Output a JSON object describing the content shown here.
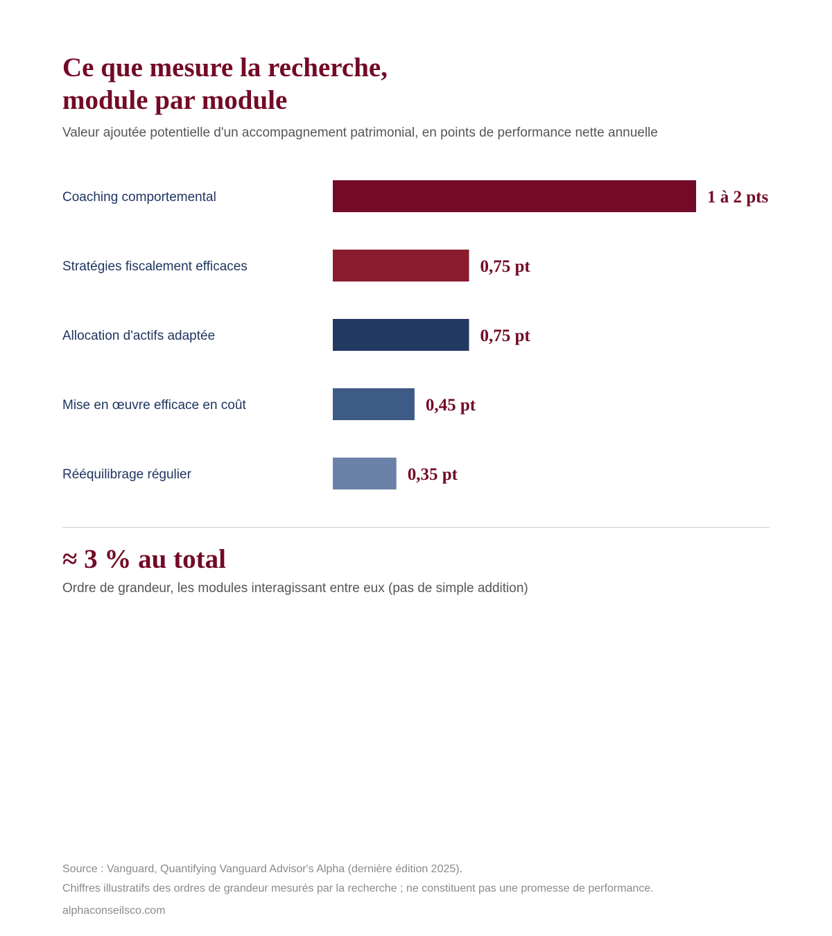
{
  "header": {
    "title_line1": "Ce que mesure la recherche,",
    "title_line2": "module par module",
    "subtitle": "Valeur ajoutée potentielle d'un accompagnement patrimonial, en points de performance nette annuelle"
  },
  "chart_data": {
    "type": "bar",
    "orientation": "horizontal",
    "categories": [
      "Coaching comportemental",
      "Stratégies fiscalement efficaces",
      "Allocation d'actifs adaptée",
      "Mise en œuvre efficace en coût",
      "Rééquilibrage régulier"
    ],
    "values": [
      2,
      0.75,
      0.75,
      0.45,
      0.35
    ],
    "value_labels": [
      "1 à 2 pts",
      "0,75 pt",
      "0,75 pt",
      "0,45 pt",
      "0,35 pt"
    ],
    "colors": [
      "#730a27",
      "#8b1c2e",
      "#223962",
      "#3e5a86",
      "#6a82a8"
    ],
    "xlim": [
      0,
      2
    ],
    "grid": false,
    "legend": false
  },
  "summary": {
    "total": "≈ 3 % au total",
    "note": "Ordre de grandeur, les modules interagissant entre eux (pas de simple addition)"
  },
  "footer": {
    "source": "Source : Vanguard, Quantifying Vanguard Advisor's Alpha (dernière édition 2025).",
    "disclaimer": "Chiffres illustratifs des ordres de grandeur mesurés par la recherche ; ne constituent pas une promesse de performance.",
    "website": "alphaconseilsco.com"
  },
  "colors": {
    "accent": "#730a27",
    "label_text": "#1f3560",
    "muted_text": "#555555"
  }
}
